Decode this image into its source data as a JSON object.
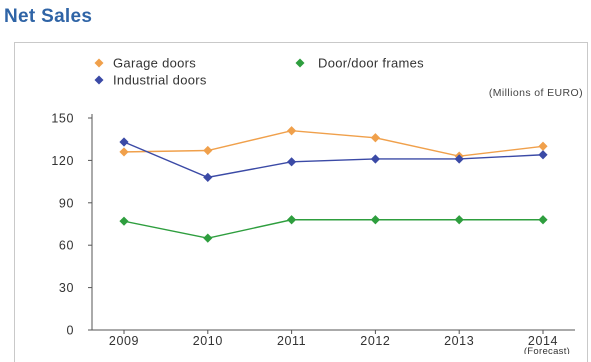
{
  "title": "Net Sales",
  "chart_data": {
    "type": "line",
    "title": "Net Sales",
    "unit": "(Millions of EURO)",
    "x": [
      "2009",
      "2010",
      "2011",
      "2012",
      "2013",
      "2014"
    ],
    "x_sublabels": [
      "",
      "",
      "",
      "",
      "",
      "(Forecast)"
    ],
    "ylim": [
      0,
      150
    ],
    "yticks": [
      0,
      30,
      60,
      90,
      120,
      150
    ],
    "grid": false,
    "legend_position": "top-left",
    "series": [
      {
        "name": "Garage doors",
        "color": "#f0a04b",
        "marker": "diamond",
        "values": [
          126,
          127,
          141,
          136,
          123,
          130
        ]
      },
      {
        "name": "Door/door frames",
        "color": "#2e9e3e",
        "marker": "diamond",
        "values": [
          77,
          65,
          78,
          78,
          78,
          78
        ]
      },
      {
        "name": "Industrial doors",
        "color": "#3b4aa6",
        "marker": "diamond",
        "values": [
          133,
          108,
          119,
          121,
          121,
          124
        ]
      }
    ]
  }
}
